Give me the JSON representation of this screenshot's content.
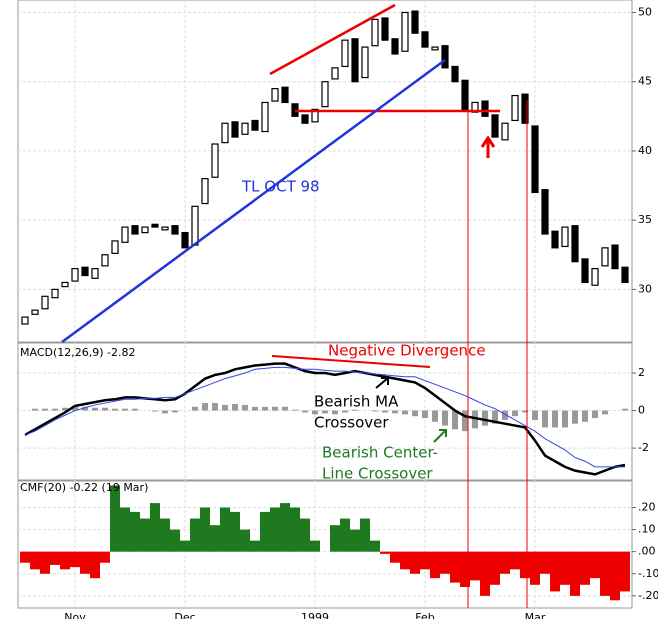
{
  "chart_data": [
    {
      "type": "candlestick",
      "ylim": [
        26.2,
        50.9
      ],
      "yticks": [
        30,
        35,
        40,
        45,
        50
      ],
      "grid": true,
      "open": [
        27.5,
        28.2,
        28.6,
        29.4,
        30.2,
        30.6,
        31.6,
        30.8,
        31.7,
        32.6,
        33.4,
        34.6,
        34.1,
        34.7,
        34.3,
        34.6,
        34.1,
        33.2,
        36.2,
        38.1,
        40.6,
        42.1,
        41.2,
        42.2,
        41.4,
        43.6,
        44.6,
        43.4,
        42.6,
        42.1,
        43.2,
        45.2,
        46.1,
        48.1,
        45.3,
        47.6,
        49.6,
        48.1,
        47.2,
        50.1,
        48.6,
        47.3,
        47.6,
        46.1,
        45.1,
        42.8,
        43.6,
        42.6,
        40.8,
        42.2,
        44.1,
        41.8,
        37.2,
        34.2,
        33.1,
        34.6,
        32.2,
        30.3,
        31.7,
        33.2,
        31.6
      ],
      "close": [
        28,
        28.5,
        29.5,
        30,
        30.5,
        31.5,
        31,
        31.5,
        32.5,
        33.5,
        34.5,
        34,
        34.5,
        34.5,
        34.5,
        34,
        33,
        36,
        38,
        40.5,
        42,
        41,
        42,
        41.5,
        43.5,
        44.5,
        43.5,
        42.5,
        42,
        43,
        45,
        46,
        48,
        45,
        47.5,
        49.5,
        48,
        47,
        50,
        48.5,
        47.5,
        47.5,
        46,
        45,
        43,
        43.5,
        42.5,
        41,
        42,
        44,
        42,
        37,
        34,
        33,
        34.5,
        32,
        30.5,
        31.5,
        33,
        31.5,
        30.5
      ],
      "annotation": "TL OCT 98"
    },
    {
      "type": "macd",
      "label": "MACD(12,26,9) -2.82",
      "ylim": [
        -3.7,
        3.6
      ],
      "yticks": [
        -2,
        0,
        2
      ],
      "grid": true,
      "series": [
        {
          "kind": "line",
          "color": "#000000",
          "values": [
            -1.3,
            -1.0,
            -0.7,
            -0.4,
            -0.1,
            0.25,
            0.35,
            0.45,
            0.55,
            0.6,
            0.7,
            0.7,
            0.65,
            0.6,
            0.55,
            0.6,
            0.9,
            1.3,
            1.7,
            1.9,
            2.0,
            2.2,
            2.3,
            2.4,
            2.45,
            2.5,
            2.5,
            2.3,
            2.1,
            2.0,
            2.0,
            1.9,
            2.0,
            2.1,
            2.0,
            1.9,
            1.8,
            1.7,
            1.6,
            1.5,
            1.2,
            0.8,
            0.4,
            0,
            -0.3,
            -0.4,
            -0.5,
            -0.6,
            -0.7,
            -0.8,
            -0.9,
            -1.6,
            -2.4,
            -2.7,
            -3.0,
            -3.2,
            -3.3,
            -3.4,
            -3.2,
            -3.0,
            -2.9
          ]
        },
        {
          "kind": "line",
          "color": "#3344ee",
          "values": [
            -1.3,
            -1.1,
            -0.8,
            -0.5,
            -0.25,
            0,
            0.15,
            0.3,
            0.4,
            0.5,
            0.6,
            0.6,
            0.65,
            0.65,
            0.7,
            0.7,
            0.9,
            1.1,
            1.3,
            1.5,
            1.7,
            1.85,
            2.0,
            2.2,
            2.25,
            2.3,
            2.3,
            2.25,
            2.2,
            2.2,
            2.15,
            2.1,
            2.1,
            2.05,
            2.0,
            1.95,
            1.9,
            1.85,
            1.8,
            1.8,
            1.6,
            1.4,
            1.2,
            1.0,
            0.8,
            0.55,
            0.3,
            0.1,
            -0.2,
            -0.5,
            -0.8,
            -1.1,
            -1.5,
            -1.8,
            -2.1,
            -2.5,
            -2.7,
            -3.0,
            -3.0,
            -3.0,
            -3.0
          ]
        },
        {
          "kind": "bar",
          "color": "#999999",
          "values": [
            0,
            0.1,
            0.1,
            0.1,
            0.15,
            0.25,
            0.2,
            0.15,
            0.15,
            0.1,
            0.1,
            0.1,
            0,
            -0.05,
            -0.15,
            -0.1,
            0,
            0.2,
            0.4,
            0.4,
            0.3,
            0.35,
            0.3,
            0.2,
            0.2,
            0.2,
            0.2,
            0.05,
            -0.1,
            -0.2,
            -0.15,
            -0.2,
            -0.1,
            0.05,
            0,
            -0.05,
            -0.1,
            -0.15,
            -0.2,
            -0.3,
            -0.4,
            -0.6,
            -0.8,
            -1.0,
            -1.1,
            -0.95,
            -0.8,
            -0.7,
            -0.5,
            -0.3,
            -0.1,
            -0.5,
            -0.9,
            -0.9,
            -0.9,
            -0.7,
            -0.6,
            -0.4,
            -0.2,
            0,
            0.1
          ]
        }
      ],
      "annotations": [
        "Negative Divergence",
        [
          "Bearish MA",
          "Crossover"
        ],
        [
          "Bearish Center-",
          "Line Crossover"
        ]
      ]
    },
    {
      "type": "cmf",
      "label": "CMF(20) -0.22 (19 Mar)",
      "ylim": [
        -0.255,
        0.32
      ],
      "yticks": [
        {
          "value": 0.2,
          "label": ".20"
        },
        {
          "value": 0.1,
          "label": ".10"
        },
        {
          "value": 0,
          "label": ".00"
        },
        {
          "value": -0.1,
          "label": "-.10"
        },
        {
          "value": -0.2,
          "label": "-.20"
        }
      ],
      "grid": true,
      "positive_color": "#1f7a1f",
      "negative_color": "#ee0000",
      "values": [
        -0.05,
        -0.08,
        -0.1,
        -0.06,
        -0.08,
        -0.07,
        -0.1,
        -0.12,
        -0.05,
        0.3,
        0.2,
        0.18,
        0.15,
        0.22,
        0.15,
        0.1,
        0.05,
        0.15,
        0.2,
        0.12,
        0.2,
        0.18,
        0.1,
        0.05,
        0.18,
        0.2,
        0.22,
        0.2,
        0.15,
        0.05,
        0.0,
        0.12,
        0.15,
        0.1,
        0.15,
        0.05,
        -0.01,
        -0.05,
        -0.08,
        -0.1,
        -0.08,
        -0.12,
        -0.1,
        -0.14,
        -0.16,
        -0.13,
        -0.2,
        -0.15,
        -0.1,
        -0.08,
        -0.12,
        -0.15,
        -0.1,
        -0.18,
        -0.15,
        -0.2,
        -0.15,
        -0.12,
        -0.2,
        -0.22,
        -0.18
      ],
      "categories": [
        null,
        null,
        null,
        null,
        null,
        "Nov",
        null,
        null,
        null,
        null,
        null,
        null,
        null,
        null,
        null,
        null,
        "Dec",
        null,
        null,
        null,
        null,
        null,
        null,
        null,
        null,
        null,
        null,
        null,
        null,
        "1999",
        null,
        null,
        null,
        null,
        null,
        null,
        null,
        null,
        null,
        null,
        "Feb",
        null,
        null,
        null,
        null,
        null,
        null,
        null,
        null,
        null,
        null,
        "Mar",
        null,
        null,
        null,
        null,
        null,
        null,
        null,
        null,
        null
      ]
    }
  ]
}
